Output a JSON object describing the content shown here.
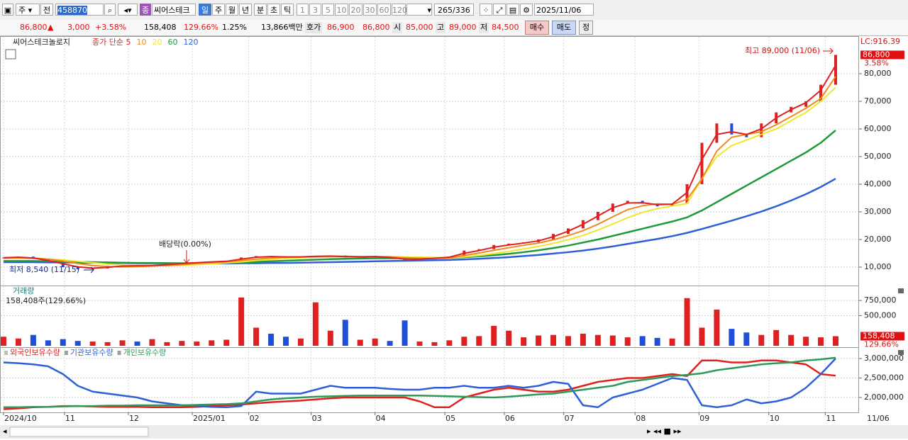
{
  "toolbar": {
    "type_button": "주",
    "prev_button": "전",
    "code": "458870",
    "market_badge": "종",
    "name": "씨어스테크",
    "periods": [
      "일",
      "주",
      "월",
      "년",
      "분",
      "초",
      "틱"
    ],
    "minutes": [
      "1",
      "3",
      "5",
      "10",
      "20",
      "30",
      "60",
      "120"
    ],
    "count": "265",
    "total": "/336",
    "date": "2025/11/06"
  },
  "quote": {
    "price": "86,800",
    "arrow": "▲",
    "change": "3,000",
    "change_rate": "+3.58%",
    "volume": "158,408",
    "volume_rate": "129.66%",
    "turnover": "1.25%",
    "amount": "13,866백만",
    "ask_label": "호가",
    "ask": "86,900",
    "bid": "86,800",
    "open_label": "시",
    "open": "85,000",
    "high_label": "고",
    "high": "89,000",
    "low_label": "저",
    "low": "84,500",
    "buy": "매수",
    "sell": "매도",
    "extra": "정"
  },
  "chart_data": [
    {
      "type": "candle-line",
      "title": "씨어스테크놀로지",
      "close": [
        13500,
        13800,
        13000,
        11500,
        10000,
        9200,
        9500,
        10500,
        10800,
        10200,
        10800,
        11200,
        11500,
        11800,
        12000,
        12200,
        13500,
        14000,
        13800,
        13500,
        13800,
        14000,
        14200,
        13500,
        13800,
        14000,
        13200,
        12500,
        13000,
        13500,
        13800,
        16000,
        16500,
        18000,
        18500,
        19000,
        20000,
        22000,
        24000,
        27000,
        30000,
        33000,
        34000,
        33000,
        32000,
        33000,
        40000,
        55000,
        62000,
        58000,
        57000,
        62000,
        66000,
        68000,
        70000,
        76000,
        86800
      ],
      "up_color": "#e02020",
      "down_color": "#1f4fd8",
      "series": [
        {
          "name": "종가 단순 5",
          "color": "#e02020",
          "values": [
            13400,
            13600,
            13300,
            12400,
            11200,
            10100,
            9600,
            9900,
            10400,
            10500,
            10600,
            10900,
            11300,
            11600,
            11900,
            12100,
            12900,
            13600,
            13800,
            13700,
            13700,
            13900,
            14000,
            13800,
            13700,
            13800,
            13500,
            12900,
            12900,
            13200,
            13600,
            15000,
            16000,
            17200,
            18000,
            18700,
            19500,
            21000,
            23000,
            25500,
            28500,
            31500,
            33200,
            33300,
            32600,
            32800,
            37000,
            49000,
            58000,
            59000,
            58000,
            60000,
            64000,
            67000,
            69500,
            74000,
            83000
          ]
        },
        {
          "name": "10",
          "color": "#f08a1c",
          "values": [
            13300,
            13400,
            13300,
            12900,
            12200,
            11300,
            10600,
            10200,
            10100,
            10200,
            10400,
            10600,
            10900,
            11300,
            11600,
            11900,
            12400,
            12900,
            13300,
            13600,
            13700,
            13800,
            13900,
            13900,
            13800,
            13800,
            13700,
            13400,
            13200,
            13100,
            13300,
            14200,
            15100,
            16100,
            17000,
            17900,
            18700,
            19900,
            21400,
            23200,
            25500,
            28200,
            30800,
            32200,
            32900,
            32700,
            34500,
            42000,
            52000,
            57000,
            58000,
            59000,
            61500,
            64500,
            67500,
            71000,
            79000
          ]
        },
        {
          "name": "20",
          "color": "#eee82a",
          "values": [
            13200,
            13200,
            13100,
            12900,
            12600,
            12100,
            11600,
            11100,
            10800,
            10600,
            10500,
            10500,
            10700,
            10900,
            11200,
            11500,
            11900,
            12400,
            12800,
            13100,
            13400,
            13600,
            13700,
            13800,
            13800,
            13800,
            13800,
            13700,
            13600,
            13500,
            13400,
            13700,
            14200,
            14900,
            15700,
            16600,
            17500,
            18600,
            19900,
            21500,
            23400,
            25600,
            27900,
            29800,
            31200,
            32100,
            33000,
            42000,
            50000,
            54000,
            56000,
            58000,
            60000,
            63000,
            66000,
            70000,
            75000
          ]
        },
        {
          "name": "60",
          "color": "#1e9a3a",
          "values": [
            12200,
            12200,
            12200,
            12100,
            12000,
            11900,
            11800,
            11700,
            11600,
            11500,
            11500,
            11400,
            11400,
            11400,
            11500,
            11600,
            11700,
            11900,
            12100,
            12300,
            12500,
            12700,
            12900,
            13000,
            13100,
            13200,
            13200,
            13200,
            13300,
            13300,
            13400,
            13600,
            13900,
            14300,
            14800,
            15400,
            16100,
            16900,
            17800,
            18900,
            20000,
            21300,
            22600,
            23900,
            25200,
            26500,
            28000,
            30500,
            33500,
            36500,
            39500,
            42500,
            45500,
            48500,
            51500,
            55000,
            59500
          ]
        },
        {
          "name": "120",
          "color": "#2f5fd8",
          "values": [
            11800,
            11800,
            11800,
            11700,
            11700,
            11600,
            11600,
            11500,
            11500,
            11400,
            11400,
            11400,
            11300,
            11300,
            11300,
            11300,
            11400,
            11400,
            11500,
            11500,
            11600,
            11700,
            11800,
            11900,
            12000,
            12100,
            12200,
            12300,
            12400,
            12500,
            12600,
            12800,
            13000,
            13300,
            13600,
            14000,
            14400,
            14900,
            15400,
            16000,
            16700,
            17500,
            18400,
            19300,
            20200,
            21200,
            22400,
            23800,
            25300,
            26800,
            28400,
            30100,
            32000,
            34100,
            36400,
            39000,
            42000
          ]
        }
      ],
      "xlim": [
        0,
        56
      ],
      "ylim": [
        3590,
        89740
      ],
      "yticks": [
        {
          "value": 10000,
          "label": "10,000"
        },
        {
          "value": 20000,
          "label": "20,000"
        },
        {
          "value": 30000,
          "label": "30,000"
        },
        {
          "value": 40000,
          "label": "40,000"
        },
        {
          "value": 50000,
          "label": "50,000"
        },
        {
          "value": 60000,
          "label": "60,000"
        },
        {
          "value": 70000,
          "label": "70,000"
        },
        {
          "value": 80000,
          "label": "80,000"
        }
      ],
      "grid": true,
      "annotations": {
        "high": "최고 89,000 (11/06)",
        "low": "최저 8,540 (11/15)",
        "dividend": "배당락(0.00%)"
      },
      "corner_label": "LC:916.39",
      "last_label": "86,800",
      "last_change": "3.58%"
    },
    {
      "type": "bar",
      "title": "거래량",
      "subtitle": "158,408주(129.66%)",
      "values": [
        150000,
        120000,
        180000,
        90000,
        110000,
        80000,
        70000,
        60000,
        90000,
        70000,
        110000,
        60000,
        80000,
        70000,
        90000,
        100000,
        800000,
        300000,
        200000,
        150000,
        120000,
        720000,
        250000,
        430000,
        100000,
        120000,
        80000,
        420000,
        70000,
        60000,
        90000,
        150000,
        160000,
        330000,
        250000,
        140000,
        170000,
        180000,
        160000,
        200000,
        180000,
        170000,
        140000,
        160000,
        130000,
        120000,
        790000,
        300000,
        600000,
        280000,
        220000,
        180000,
        260000,
        180000,
        150000,
        140000,
        158408
      ],
      "xlim": [
        0,
        56
      ],
      "ylim": [
        0,
        916000
      ],
      "yticks": [
        {
          "value": 500000,
          "label": "500,000"
        },
        {
          "value": 750000,
          "label": "750,000"
        }
      ],
      "grid": true,
      "last_label": "158,408",
      "last_rate": "129.66%"
    },
    {
      "type": "line",
      "series": [
        {
          "name": "외국인보유수량",
          "color": "#e0201c",
          "values": [
            1700000,
            1720000,
            1750000,
            1760000,
            1780000,
            1780000,
            1770000,
            1760000,
            1760000,
            1760000,
            1750000,
            1750000,
            1750000,
            1760000,
            1780000,
            1800000,
            1820000,
            1850000,
            1880000,
            1900000,
            1920000,
            1950000,
            1980000,
            2000000,
            2000000,
            2000000,
            2000000,
            2000000,
            1900000,
            1750000,
            1750000,
            2000000,
            2100000,
            2200000,
            2250000,
            2200000,
            2150000,
            2150000,
            2200000,
            2300000,
            2400000,
            2450000,
            2500000,
            2500000,
            2550000,
            2600000,
            2550000,
            2950000,
            2950000,
            2900000,
            2900000,
            2950000,
            2950000,
            2900000,
            2850000,
            2600000,
            2560000
          ]
        },
        {
          "name": "기관보유수량",
          "color": "#2f5fd8",
          "values": [
            2900000,
            2880000,
            2850000,
            2800000,
            2600000,
            2300000,
            2150000,
            2100000,
            2050000,
            2000000,
            1900000,
            1850000,
            1800000,
            1780000,
            1760000,
            1750000,
            1780000,
            2150000,
            2100000,
            2100000,
            2100000,
            2200000,
            2300000,
            2250000,
            2250000,
            2250000,
            2220000,
            2200000,
            2200000,
            2250000,
            2250000,
            2300000,
            2250000,
            2250000,
            2300000,
            2250000,
            2300000,
            2400000,
            2350000,
            1800000,
            1750000,
            2000000,
            2100000,
            2200000,
            2350000,
            2500000,
            2450000,
            1800000,
            1750000,
            1800000,
            1950000,
            1850000,
            1900000,
            2000000,
            2250000,
            2600000,
            3000000
          ]
        },
        {
          "name": "개인보유수량",
          "color": "#2e9a5a",
          "values": [
            1750000,
            1750000,
            1760000,
            1760000,
            1770000,
            1780000,
            1780000,
            1790000,
            1790000,
            1800000,
            1800000,
            1800000,
            1800000,
            1810000,
            1820000,
            1830000,
            1850000,
            1900000,
            1950000,
            1980000,
            2000000,
            2020000,
            2030000,
            2040000,
            2050000,
            2050000,
            2050000,
            2050000,
            2050000,
            2040000,
            2030000,
            2020000,
            2010000,
            2000000,
            2020000,
            2050000,
            2080000,
            2100000,
            2150000,
            2200000,
            2250000,
            2300000,
            2400000,
            2450000,
            2500000,
            2550000,
            2580000,
            2620000,
            2700000,
            2750000,
            2800000,
            2850000,
            2880000,
            2900000,
            2950000,
            2980000,
            3020000
          ]
        }
      ],
      "xlim": [
        0,
        56
      ],
      "ylim": [
        1618000,
        3109000
      ],
      "yticks": [
        {
          "value": 2000000,
          "label": "2,000,000"
        },
        {
          "value": 2500000,
          "label": "2,500,000"
        },
        {
          "value": 3000000,
          "label": "3,000,000"
        }
      ],
      "grid": true,
      "xticks": [
        {
          "value": 0,
          "label": "2024/10"
        },
        {
          "value": 4.1,
          "label": "11"
        },
        {
          "value": 8.4,
          "label": "12"
        },
        {
          "value": 12.7,
          "label": "2025/01"
        },
        {
          "value": 16.5,
          "label": "02"
        },
        {
          "value": 20.7,
          "label": "03"
        },
        {
          "value": 25,
          "label": "04"
        },
        {
          "value": 29.7,
          "label": "05"
        },
        {
          "value": 33.7,
          "label": "06"
        },
        {
          "value": 37.7,
          "label": "07"
        },
        {
          "value": 42.5,
          "label": "08"
        },
        {
          "value": 46.8,
          "label": "09"
        },
        {
          "value": 51.5,
          "label": "10"
        },
        {
          "value": 55.3,
          "label": "11"
        }
      ],
      "end_label": "11/06"
    }
  ]
}
